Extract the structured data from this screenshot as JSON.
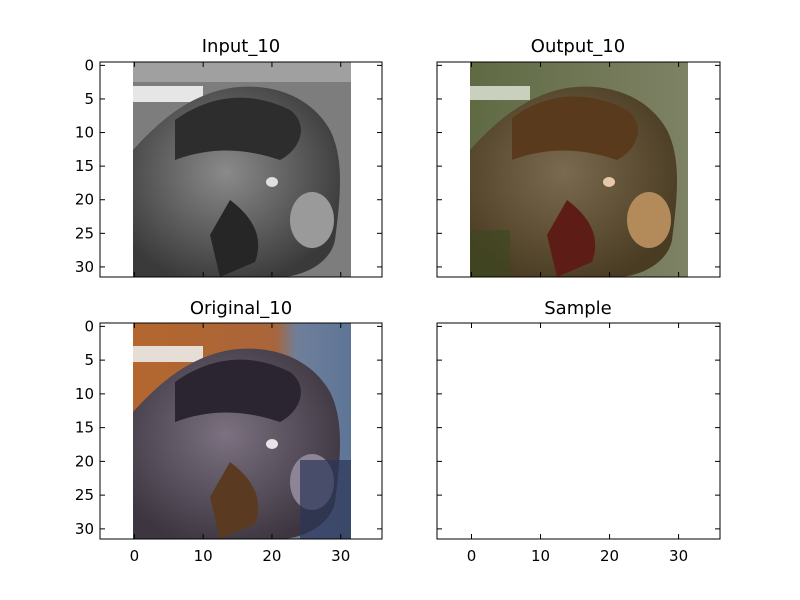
{
  "chart_data": [
    {
      "type": "image",
      "title": "Input_10",
      "image_extent": [
        -0.5,
        31.5
      ],
      "xlim": [
        -5,
        36
      ],
      "ylim": [
        31.5,
        -0.5
      ],
      "xticks": [],
      "yticks": [
        "0",
        "5",
        "10",
        "15",
        "20",
        "25",
        "30"
      ],
      "colormap": "gray",
      "content": "grayscale horse head"
    },
    {
      "type": "image",
      "title": "Output_10",
      "image_extent": [
        -0.5,
        31.5
      ],
      "xlim": [
        -5,
        36
      ],
      "ylim": [
        31.5,
        -0.5
      ],
      "xticks": [],
      "yticks": [],
      "colormap": "rgb",
      "content": "colorized horse head (brownish, green tint)"
    },
    {
      "type": "image",
      "title": "Original_10",
      "image_extent": [
        -0.5,
        31.5
      ],
      "xlim": [
        -5,
        36
      ],
      "ylim": [
        31.5,
        -0.5
      ],
      "xticks": [
        "0",
        "10",
        "20",
        "30"
      ],
      "yticks": [
        "0",
        "5",
        "10",
        "15",
        "20",
        "25",
        "30"
      ],
      "colormap": "rgb",
      "content": "original color horse head, orange and blue background"
    },
    {
      "type": "image",
      "title": "Sample",
      "image_extent": null,
      "xlim": [
        -5,
        36
      ],
      "ylim": [
        31.5,
        -0.5
      ],
      "xticks": [
        "0",
        "10",
        "20",
        "30"
      ],
      "yticks": [],
      "colormap": null,
      "content": "empty"
    }
  ]
}
